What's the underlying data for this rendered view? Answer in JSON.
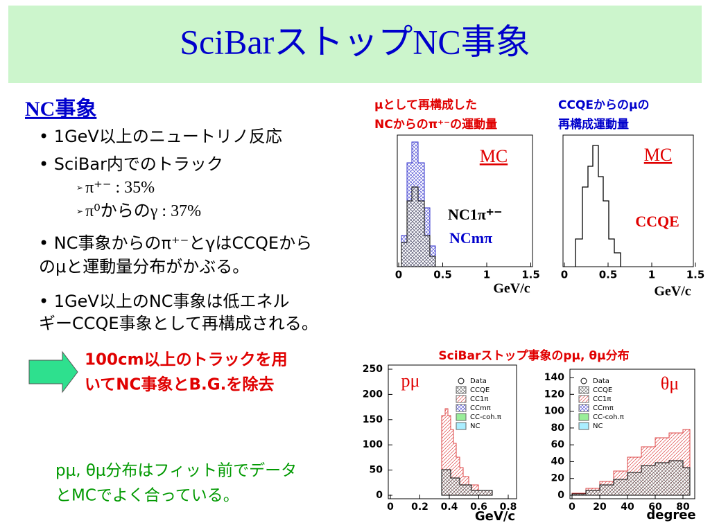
{
  "title": "SciBarストップNC事象",
  "left": {
    "heading": "NC事象",
    "bullets": [
      "1GeV以上のニュートリノ反応",
      "SciBar内でのトラック"
    ],
    "subbullets": [
      "π⁺⁻ : 35%",
      "π⁰からのγ : 37%"
    ],
    "bullet3": [
      "NC事象からのπ⁺⁻とγはCCQEから",
      "のμと運動量分布がかぶる。"
    ],
    "bullet4": [
      "1GeV以上のNC事象は低エネル",
      "ギーCCQE事象として再構成される。"
    ],
    "arrow_text": [
      "100cm以上のトラックを用",
      "いてNC事象とB.G.を除去"
    ],
    "conclusion": [
      "pμ, θμ分布はフィット前でデータ",
      "とMCでよく合っている。"
    ]
  },
  "plots_caption": "SciBarストップ事象のpμ, θμ分布",
  "plots": [
    {
      "caption": [
        "μとして再構成した",
        "NCからのπ⁺⁻の運動量"
      ],
      "label": "MC",
      "labels": [
        "NC1π⁺⁻",
        "NCmπ"
      ],
      "xticks": [
        0,
        0.5,
        1,
        1.5
      ],
      "xlabel": "GeV/c"
    },
    {
      "caption": [
        "CCQEからのμの",
        "再構成運動量"
      ],
      "label": "MC",
      "labels": [
        "CCQE"
      ],
      "xticks": [
        0,
        0.5,
        1,
        1.5
      ],
      "xlabel": "GeV/c"
    },
    {
      "label": "pμ",
      "legend": [
        "Data",
        "CCQE",
        "CC1π",
        "CCmπ",
        "CC-coh.π",
        "NC"
      ],
      "xticks": [
        0,
        0.2,
        0.4,
        0.6,
        0.8
      ],
      "yticks": [
        0,
        50,
        100,
        150,
        200,
        250
      ],
      "xlabel": "GeV/c"
    },
    {
      "label": "θμ",
      "legend": [
        "Data",
        "CCQE",
        "CC1π",
        "CCmπ",
        "CC-coh.π",
        "NC"
      ],
      "xticks": [
        0,
        20,
        40,
        60,
        80
      ],
      "yticks": [
        0,
        20,
        40,
        60,
        80,
        100,
        120,
        140
      ],
      "xlabel": "degree"
    }
  ]
}
